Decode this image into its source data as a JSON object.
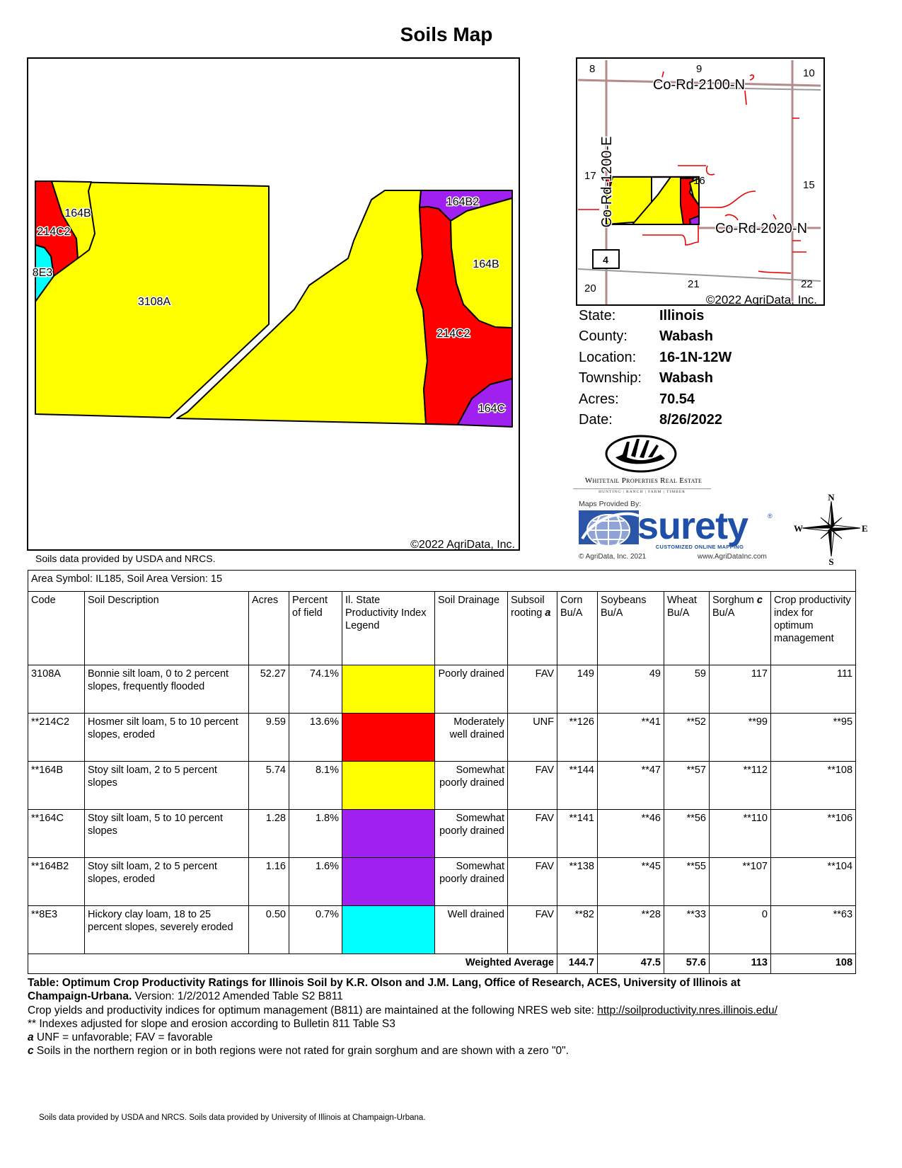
{
  "title": "Soils Map",
  "main_map": {
    "labels": {
      "a3108A": "3108A",
      "a164B_w": "164B",
      "a214C2_w": "214C2",
      "a8E3": "8E3",
      "a164B2": "164B2",
      "a164B_e": "164B",
      "a214C2_e": "214C2",
      "a164C": "164C"
    },
    "copyright": "©2022 AgriData, Inc."
  },
  "locator_map": {
    "sections": [
      "8",
      "9",
      "10",
      "17",
      "16",
      "15",
      "20",
      "21",
      "22"
    ],
    "roads": {
      "north": "Co-Rd-2100-N",
      "south": "Co-Rd-2020-N",
      "west": "Co-Rd-1200-E"
    },
    "route_shield": "4",
    "copyright": "©2022 AgriData, Inc."
  },
  "info": [
    {
      "label": "State:",
      "value": "Illinois"
    },
    {
      "label": "County:",
      "value": "Wabash"
    },
    {
      "label": "Location:",
      "value": "16-1N-12W"
    },
    {
      "label": "Township:",
      "value": "Wabash"
    },
    {
      "label": "Acres:",
      "value": "70.54"
    },
    {
      "label": "Date:",
      "value": "8/26/2022"
    }
  ],
  "logos": {
    "whitetail": {
      "name": "Whitetail Properties Real Estate",
      "tagline": "HUNTING | RANCH | FARM | TIMBER"
    },
    "surety": {
      "provided_by": "Maps Provided By:",
      "brand": "surety",
      "tagline": "CUSTOMIZED ONLINE MAPPING",
      "copyright": "© AgriData, Inc. 2021",
      "url": "www.AgriDataInc.com"
    },
    "compass": {
      "n": "N",
      "s": "S",
      "e": "E",
      "w": "W"
    }
  },
  "colors": {
    "yellow": "#ffff00",
    "red": "#ff0000",
    "purple": "#a020f0",
    "cyan": "#00ffff"
  },
  "usda_note": "Soils data provided by USDA and NRCS.",
  "table": {
    "area_symbol": "Area Symbol: IL185, Soil Area Version: 15",
    "headers": [
      "Code",
      "Soil Description",
      "Acres",
      "Percent of field",
      "Il. State Productivity Index Legend",
      "Soil Drainage",
      "Subsoil rooting",
      "Corn Bu/A",
      "Soybeans Bu/A",
      "Wheat Bu/A",
      "Sorghum",
      "Bu/A",
      "Crop productivity index for optimum management"
    ],
    "header_marks": {
      "subsoil": "a",
      "sorghum": "c"
    },
    "rows": [
      {
        "code": "3108A",
        "desc": "Bonnie silt loam, 0 to 2 percent slopes, frequently flooded",
        "acres": "52.27",
        "pct": "74.1%",
        "color": "#ffff00",
        "drainage": "Poorly drained",
        "rooting": "FAV",
        "corn": "149",
        "soy": "49",
        "wheat": "59",
        "sorghum": "117",
        "cpi": "111"
      },
      {
        "code": "**214C2",
        "desc": "Hosmer silt loam, 5 to 10 percent slopes, eroded",
        "acres": "9.59",
        "pct": "13.6%",
        "color": "#ff0000",
        "drainage": "Moderately well drained",
        "rooting": "UNF",
        "corn": "**126",
        "soy": "**41",
        "wheat": "**52",
        "sorghum": "**99",
        "cpi": "**95"
      },
      {
        "code": "**164B",
        "desc": "Stoy silt loam, 2 to 5 percent slopes",
        "acres": "5.74",
        "pct": "8.1%",
        "color": "#ffff00",
        "drainage": "Somewhat poorly drained",
        "rooting": "FAV",
        "corn": "**144",
        "soy": "**47",
        "wheat": "**57",
        "sorghum": "**112",
        "cpi": "**108"
      },
      {
        "code": "**164C",
        "desc": "Stoy silt loam, 5 to 10 percent slopes",
        "acres": "1.28",
        "pct": "1.8%",
        "color": "#a020f0",
        "drainage": "Somewhat poorly drained",
        "rooting": "FAV",
        "corn": "**141",
        "soy": "**46",
        "wheat": "**56",
        "sorghum": "**110",
        "cpi": "**106"
      },
      {
        "code": "**164B2",
        "desc": "Stoy silt loam, 2 to 5 percent slopes, eroded",
        "acres": "1.16",
        "pct": "1.6%",
        "color": "#a020f0",
        "drainage": "Somewhat poorly drained",
        "rooting": "FAV",
        "corn": "**138",
        "soy": "**45",
        "wheat": "**55",
        "sorghum": "**107",
        "cpi": "**104"
      },
      {
        "code": "**8E3",
        "desc": "Hickory clay loam, 18 to 25 percent slopes, severely eroded",
        "acres": "0.50",
        "pct": "0.7%",
        "color": "#00ffff",
        "drainage": "Well drained",
        "rooting": "FAV",
        "corn": "**82",
        "soy": "**28",
        "wheat": "**33",
        "sorghum": "0",
        "cpi": "**63"
      }
    ],
    "weighted": {
      "label": "Weighted Average",
      "corn": "144.7",
      "soy": "47.5",
      "wheat": "57.6",
      "sorghum": "113",
      "cpi": "108"
    }
  },
  "footnotes": {
    "source_bold": "Table: Optimum Crop Productivity Ratings for Illinois Soil by K.R. Olson and J.M. Lang, Office of Research, ACES, University of Illinois at",
    "source_bold2": "Champaign-Urbana.",
    "version": " Version: 1/2/2012 Amended Table S2 B811",
    "nres_text": "Crop yields and productivity indices for optimum management (B811) are maintained at the following NRES web site: ",
    "nres_link": "http://soilproductivity.nres.illinois.edu/",
    "adjusted": "** Indexes adjusted for slope and erosion according to Bulletin 811 Table S3",
    "a_mark": "a",
    "a_text": " UNF = unfavorable; FAV = favorable",
    "c_mark": "c",
    "c_text": " Soils in the northern region or in both regions were not rated for grain sorghum and are shown with a zero \"0\"."
  },
  "bottom_note": "Soils data provided by USDA and NRCS. Soils data provided by University of Illinois at Champaign-Urbana."
}
